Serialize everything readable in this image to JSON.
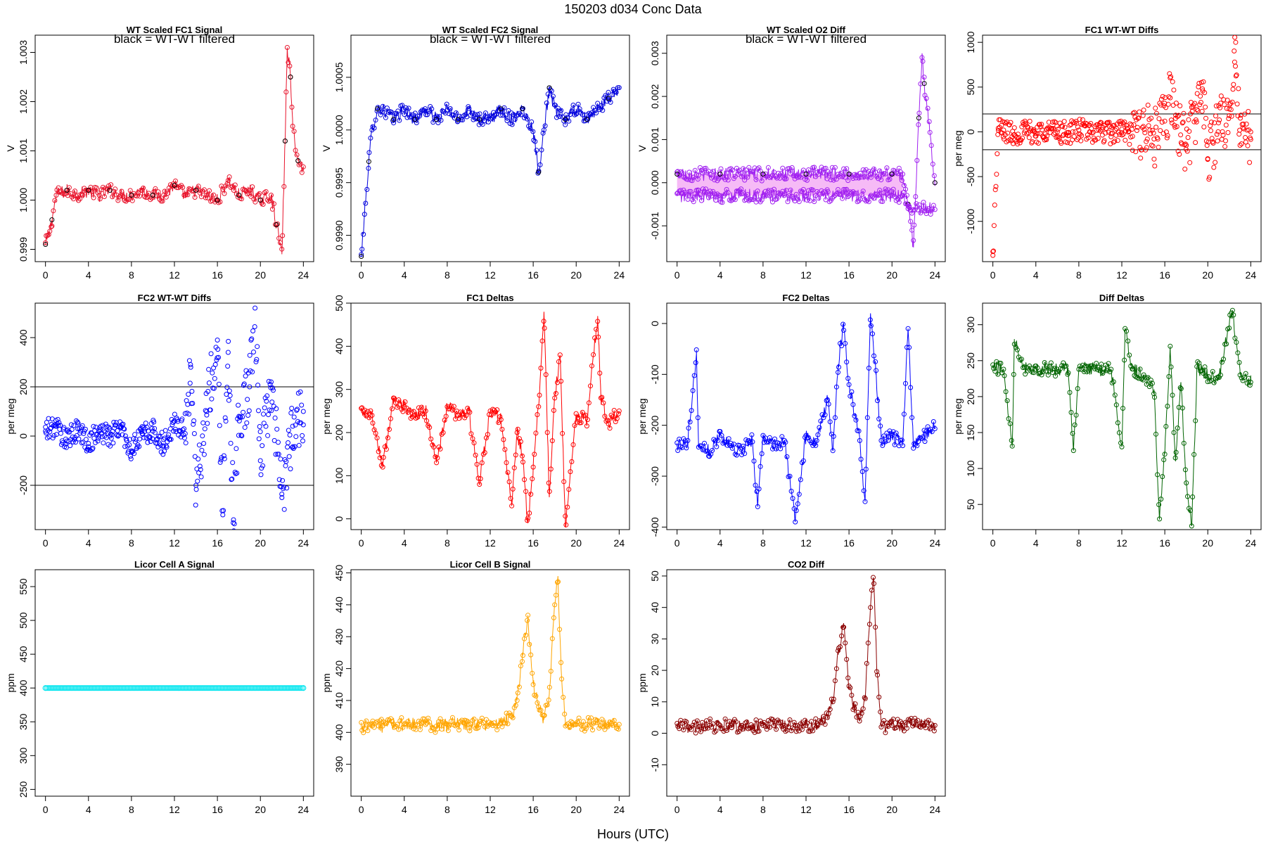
{
  "figure": {
    "title": "150203    d034    Conc Data",
    "xlabel": "Hours (UTC)"
  },
  "chart_data": [
    {
      "type": "line",
      "title": "WT Scaled FC1 Signal",
      "annotation": "black = WT-WT filtered",
      "ylabel": "V",
      "xlim": [
        0,
        24
      ],
      "ylim": [
        0.99875,
        1.00335
      ],
      "yticks": [
        "0.999",
        "1.000",
        "1.001",
        "1.002",
        "1.003"
      ],
      "ytick_values": [
        0.999,
        1.0,
        1.001,
        1.002,
        1.003
      ],
      "series": [
        {
          "color": "#e8132b",
          "overlay_color": "#000000",
          "x": [
            0,
            0.3,
            0.6,
            1,
            2,
            3,
            4,
            5,
            6,
            7,
            8,
            9,
            10,
            11,
            12,
            13,
            14,
            15,
            16,
            17,
            18,
            19,
            20,
            21,
            21.5,
            22,
            22.3,
            22.5,
            22.8,
            23,
            23.5,
            24
          ],
          "values": [
            0.9991,
            0.9993,
            0.9996,
            1.0001,
            1.0002,
            1.0001,
            1.0002,
            1.0001,
            1.0002,
            1.0001,
            1.0001,
            1.0002,
            1.0001,
            1.0001,
            1.0003,
            1.0001,
            1.0002,
            1.0001,
            1.0,
            1.0004,
            1.0001,
            1.0002,
            1.0,
            1.0001,
            0.9995,
            0.9989,
            1.0012,
            1.0031,
            1.0025,
            1.0015,
            1.0008,
            1.0006
          ]
        }
      ]
    },
    {
      "type": "line",
      "title": "WT Scaled FC2 Signal",
      "annotation": "black = WT-WT filtered",
      "ylabel": "V",
      "xlim": [
        0,
        24
      ],
      "ylim": [
        0.99875,
        1.0009
      ],
      "yticks": [
        "0.9990",
        "0.9995",
        "1.0000",
        "1.0005"
      ],
      "ytick_values": [
        0.999,
        0.9995,
        1.0,
        1.0005
      ],
      "series": [
        {
          "color": "#0000dd",
          "overlay_color": "#000000",
          "x": [
            0,
            0.3,
            0.7,
            1,
            1.5,
            2,
            3,
            4,
            5,
            6,
            7,
            8,
            9,
            10,
            11,
            12,
            13,
            14,
            15,
            16,
            16.5,
            17,
            17.5,
            18,
            19,
            20,
            21,
            22,
            23,
            24
          ],
          "values": [
            0.9988,
            0.9992,
            0.9997,
            1.0,
            1.0002,
            1.0002,
            1.0001,
            1.0002,
            1.0001,
            1.0002,
            1.0001,
            1.0002,
            1.0001,
            1.0002,
            1.0001,
            1.0001,
            1.0002,
            1.0001,
            1.0002,
            1.0,
            0.9996,
            1.0,
            1.0004,
            1.0002,
            1.0001,
            1.0002,
            1.0001,
            1.0002,
            1.0003,
            1.0004
          ]
        }
      ]
    },
    {
      "type": "scatter",
      "title": "WT Scaled O2 Diff",
      "annotation": "black = WT-WT filtered",
      "ylabel": "V",
      "xlim": [
        0,
        24
      ],
      "ylim": [
        -0.00183,
        0.00342
      ],
      "yticks": [
        "-0.001",
        "0.000",
        "0.001",
        "0.002",
        "0.003"
      ],
      "ytick_values": [
        -0.001,
        0.0,
        0.001,
        0.002,
        0.003
      ],
      "series": [
        {
          "color": "#a020f0",
          "band_color": "#ee82ee",
          "overlay_color": "#000000",
          "x": [
            0,
            2,
            4,
            6,
            8,
            10,
            12,
            14,
            16,
            18,
            20,
            21,
            21.5,
            22,
            22.5,
            22.8,
            23,
            23.5,
            24
          ],
          "values": [
            0.0002,
            0.0002,
            0.0002,
            0.0002,
            0.0002,
            0.0002,
            0.0002,
            0.0002,
            0.0002,
            0.0002,
            0.0002,
            0.0002,
            -0.0005,
            -0.0015,
            0.0015,
            0.003,
            0.0023,
            0.0012,
            0.0
          ]
        },
        {
          "color": "#a020f0",
          "x": [
            0,
            2,
            4,
            6,
            8,
            10,
            12,
            14,
            16,
            18,
            20,
            21,
            21.5
          ],
          "values": [
            -0.0003,
            -0.0003,
            -0.0003,
            -0.0003,
            -0.0003,
            -0.0003,
            -0.0003,
            -0.0003,
            -0.0003,
            -0.0003,
            -0.0003,
            -0.0003,
            -0.0006
          ]
        }
      ]
    },
    {
      "type": "scatter",
      "title": "FC1 WT-WT Diffs",
      "ylabel": "per meg",
      "xlim": [
        0,
        24
      ],
      "ylim": [
        -1450,
        1080
      ],
      "yticks": [
        "-1000",
        "-500",
        "0",
        "500",
        "1000"
      ],
      "ytick_values": [
        -1000,
        -500,
        0,
        500,
        1000
      ],
      "hlines": [
        200,
        -200
      ],
      "series": [
        {
          "color": "#ff0000",
          "x": [
            0,
            0.5,
            1,
            2,
            3,
            4,
            5,
            6,
            7,
            8,
            9,
            10,
            11,
            12,
            13,
            14,
            15,
            16,
            16.5,
            17,
            18,
            19,
            19.5,
            20,
            21,
            22,
            22.5,
            22.6,
            23,
            24
          ],
          "values": [
            -1380,
            40,
            20,
            -30,
            10,
            -20,
            30,
            0,
            -10,
            20,
            0,
            10,
            -20,
            30,
            -50,
            60,
            -80,
            120,
            380,
            150,
            -150,
            250,
            480,
            -300,
            100,
            180,
            780,
            1000,
            -150,
            0
          ]
        }
      ]
    },
    {
      "type": "scatter",
      "title": "FC2 WT-WT Diffs",
      "ylabel": "per meg",
      "xlim": [
        0,
        24
      ],
      "ylim": [
        -380,
        540
      ],
      "yticks": [
        "-200",
        "0",
        "200",
        "400"
      ],
      "ytick_values": [
        -200,
        0,
        200,
        400
      ],
      "hlines": [
        200,
        -200
      ],
      "series": [
        {
          "color": "#0000ff",
          "x": [
            0,
            1,
            2,
            3,
            4,
            5,
            6,
            7,
            8,
            9,
            10,
            11,
            12,
            13,
            13.5,
            14,
            15,
            16,
            16.5,
            17,
            17.5,
            18,
            19,
            19.5,
            20,
            21,
            22,
            23,
            24
          ],
          "values": [
            20,
            40,
            -20,
            30,
            -30,
            20,
            0,
            40,
            -60,
            10,
            20,
            -40,
            60,
            10,
            290,
            -200,
            100,
            390,
            -320,
            340,
            -340,
            80,
            200,
            520,
            -100,
            220,
            -250,
            40,
            100
          ]
        }
      ]
    },
    {
      "type": "line",
      "title": "FC1 Deltas",
      "ylabel": "per meg",
      "xlim": [
        0,
        24
      ],
      "ylim": [
        -25,
        500
      ],
      "yticks": [
        "0",
        "100",
        "200",
        "300",
        "400",
        "500"
      ],
      "ytick_values": [
        0,
        100,
        200,
        300,
        400,
        500
      ],
      "series": [
        {
          "color": "#ff0000",
          "x": [
            0,
            1,
            2,
            3,
            4,
            5,
            6,
            7,
            8,
            9,
            10,
            11,
            12,
            13,
            14,
            14.5,
            15,
            15.5,
            16,
            16.5,
            17,
            17.5,
            18,
            18.5,
            19,
            20,
            21,
            22,
            22.3,
            23,
            24
          ],
          "values": [
            250,
            240,
            120,
            280,
            260,
            240,
            250,
            130,
            260,
            240,
            250,
            80,
            250,
            230,
            30,
            200,
            150,
            -10,
            120,
            260,
            480,
            50,
            280,
            380,
            -20,
            240,
            230,
            470,
            280,
            220,
            250
          ]
        }
      ]
    },
    {
      "type": "line",
      "title": "FC2 Deltas",
      "ylabel": "per meg",
      "xlim": [
        0,
        24
      ],
      "ylim": [
        -405,
        40
      ],
      "yticks": [
        "-400",
        "-300",
        "-200",
        "-100",
        "0"
      ],
      "ytick_values": [
        -400,
        -300,
        -200,
        -100,
        0
      ],
      "series": [
        {
          "color": "#0000ff",
          "x": [
            0,
            1,
            1.8,
            2,
            3,
            4,
            5,
            6,
            7,
            7.5,
            8,
            9,
            10,
            11,
            12,
            13,
            14,
            14.5,
            15,
            15.5,
            16,
            17,
            17.5,
            18,
            18.5,
            19,
            20,
            21,
            21.5,
            22,
            23,
            24
          ],
          "values": [
            -240,
            -230,
            -60,
            -240,
            -250,
            -220,
            -240,
            -250,
            -230,
            -360,
            -220,
            -240,
            -230,
            -390,
            -220,
            -230,
            -150,
            -250,
            -80,
            0,
            -120,
            -230,
            -350,
            20,
            -100,
            -230,
            -220,
            -240,
            -10,
            -240,
            -220,
            -200
          ]
        }
      ]
    },
    {
      "type": "line",
      "title": "Diff Deltas",
      "ylabel": "per meg",
      "xlim": [
        0,
        24
      ],
      "ylim": [
        15,
        330
      ],
      "yticks": [
        "50",
        "100",
        "150",
        "200",
        "250",
        "300"
      ],
      "ytick_values": [
        50,
        100,
        150,
        200,
        250,
        300
      ],
      "series": [
        {
          "color": "#006400",
          "x": [
            0,
            1,
            1.8,
            2,
            3,
            4,
            5,
            6,
            7,
            7.5,
            8,
            9,
            10,
            11,
            12,
            12.3,
            13,
            14,
            15,
            15.5,
            16,
            16.5,
            17,
            17.5,
            18,
            18.5,
            19,
            20,
            21,
            22,
            22.3,
            23,
            24
          ],
          "values": [
            240,
            238,
            130,
            280,
            240,
            238,
            240,
            236,
            240,
            125,
            238,
            240,
            236,
            238,
            130,
            295,
            238,
            230,
            210,
            30,
            120,
            270,
            110,
            220,
            80,
            20,
            240,
            230,
            225,
            300,
            320,
            230,
            220
          ]
        }
      ]
    },
    {
      "type": "scatter",
      "title": "Licor Cell A Signal",
      "ylabel": "ppm",
      "xlim": [
        0,
        24
      ],
      "ylim": [
        240,
        575
      ],
      "yticks": [
        "250",
        "300",
        "350",
        "400",
        "450",
        "500",
        "550"
      ],
      "ytick_values": [
        250,
        300,
        350,
        400,
        450,
        500,
        550
      ],
      "series": [
        {
          "color": "#00e5ee",
          "x": [
            0,
            24
          ],
          "values": [
            400,
            400
          ]
        }
      ]
    },
    {
      "type": "line",
      "title": "Licor Cell B Signal",
      "ylabel": "ppm",
      "xlim": [
        0,
        24
      ],
      "ylim": [
        380,
        451
      ],
      "yticks": [
        "390",
        "400",
        "410",
        "420",
        "430",
        "440",
        "450"
      ],
      "ytick_values": [
        390,
        400,
        410,
        420,
        430,
        440,
        450
      ],
      "series": [
        {
          "color": "#ffa500",
          "x": [
            0,
            1,
            2,
            3,
            4,
            5,
            6,
            7,
            8,
            9,
            10,
            11,
            12,
            13,
            14,
            14.5,
            15,
            15.5,
            16,
            16.5,
            17,
            17.5,
            18,
            18.3,
            18.6,
            19,
            20,
            21,
            22,
            23,
            24
          ],
          "values": [
            402,
            402,
            402,
            402.5,
            402.5,
            402.5,
            402.5,
            402,
            402.5,
            402.5,
            402.5,
            402.5,
            402.5,
            403,
            405,
            410,
            425,
            435,
            415,
            408,
            404,
            412,
            440,
            449,
            420,
            402,
            402.5,
            402.5,
            403,
            402.5,
            402.5
          ]
        }
      ]
    },
    {
      "type": "line",
      "title": "CO2 Diff",
      "ylabel": "ppm",
      "xlim": [
        0,
        24
      ],
      "ylim": [
        -20,
        52
      ],
      "yticks": [
        "-10",
        "0",
        "10",
        "20",
        "30",
        "40",
        "50"
      ],
      "ytick_values": [
        -10,
        0,
        10,
        20,
        30,
        40,
        50
      ],
      "series": [
        {
          "color": "#8b0000",
          "x": [
            0,
            1,
            2,
            3,
            4,
            5,
            6,
            7,
            8,
            9,
            10,
            11,
            12,
            13,
            14,
            14.5,
            15,
            15.5,
            16,
            16.5,
            17,
            17.5,
            18,
            18.3,
            18.6,
            19,
            20,
            21,
            22,
            23,
            24
          ],
          "values": [
            2,
            2,
            2,
            2.5,
            2.5,
            2.5,
            2.5,
            2,
            2.5,
            2.5,
            2.5,
            2.5,
            2.5,
            3,
            5,
            10,
            25,
            35,
            15,
            8,
            4,
            12,
            40,
            49,
            20,
            2,
            2.5,
            2.5,
            3,
            2.5,
            2.5
          ]
        }
      ]
    }
  ]
}
